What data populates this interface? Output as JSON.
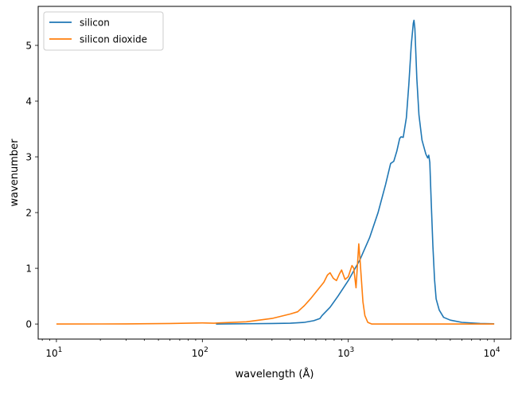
{
  "chart_data": {
    "type": "line",
    "xlabel": "wavelength (Å)",
    "ylabel": "wavenumber",
    "xscale": "log",
    "xlim": [
      7.5,
      13000
    ],
    "ylim": [
      -0.27,
      5.7
    ],
    "xticks": [
      {
        "value": 10,
        "base": "10",
        "exp": "1"
      },
      {
        "value": 100,
        "base": "10",
        "exp": "2"
      },
      {
        "value": 1000,
        "base": "10",
        "exp": "3"
      },
      {
        "value": 10000,
        "base": "10",
        "exp": "4"
      }
    ],
    "yticks": [
      0,
      1,
      2,
      3,
      4,
      5
    ],
    "grid": false,
    "legend_position": "upper-left",
    "series": [
      {
        "name": "silicon",
        "color": "#1f77b4",
        "points": [
          [
            124,
            0.0
          ],
          [
            200,
            0.005
          ],
          [
            300,
            0.01
          ],
          [
            400,
            0.015
          ],
          [
            500,
            0.03
          ],
          [
            580,
            0.06
          ],
          [
            640,
            0.1
          ],
          [
            660,
            0.15
          ],
          [
            750,
            0.3
          ],
          [
            850,
            0.5
          ],
          [
            1000,
            0.78
          ],
          [
            1200,
            1.15
          ],
          [
            1400,
            1.55
          ],
          [
            1600,
            2.0
          ],
          [
            1800,
            2.5
          ],
          [
            1950,
            2.88
          ],
          [
            2050,
            2.92
          ],
          [
            2150,
            3.1
          ],
          [
            2250,
            3.33
          ],
          [
            2300,
            3.36
          ],
          [
            2380,
            3.35
          ],
          [
            2500,
            3.7
          ],
          [
            2600,
            4.3
          ],
          [
            2700,
            5.0
          ],
          [
            2790,
            5.4
          ],
          [
            2820,
            5.45
          ],
          [
            2860,
            5.3
          ],
          [
            2950,
            4.4
          ],
          [
            3050,
            3.75
          ],
          [
            3200,
            3.3
          ],
          [
            3400,
            3.05
          ],
          [
            3500,
            2.98
          ],
          [
            3560,
            3.03
          ],
          [
            3620,
            2.9
          ],
          [
            3700,
            2.2
          ],
          [
            3800,
            1.4
          ],
          [
            3900,
            0.8
          ],
          [
            4000,
            0.45
          ],
          [
            4200,
            0.25
          ],
          [
            4500,
            0.12
          ],
          [
            5000,
            0.07
          ],
          [
            6000,
            0.03
          ],
          [
            8000,
            0.01
          ],
          [
            10000,
            0.005
          ]
        ]
      },
      {
        "name": "silicon dioxide",
        "color": "#ff7f0e",
        "points": [
          [
            10,
            0.0
          ],
          [
            30,
            0.002
          ],
          [
            60,
            0.01
          ],
          [
            100,
            0.02
          ],
          [
            120,
            0.015
          ],
          [
            130,
            0.02
          ],
          [
            200,
            0.04
          ],
          [
            300,
            0.1
          ],
          [
            400,
            0.18
          ],
          [
            450,
            0.22
          ],
          [
            500,
            0.33
          ],
          [
            550,
            0.45
          ],
          [
            620,
            0.62
          ],
          [
            680,
            0.75
          ],
          [
            720,
            0.88
          ],
          [
            750,
            0.92
          ],
          [
            790,
            0.82
          ],
          [
            830,
            0.78
          ],
          [
            870,
            0.9
          ],
          [
            900,
            0.97
          ],
          [
            950,
            0.8
          ],
          [
            1000,
            0.85
          ],
          [
            1060,
            1.05
          ],
          [
            1090,
            1.0
          ],
          [
            1130,
            0.65
          ],
          [
            1180,
            1.44
          ],
          [
            1200,
            1.2
          ],
          [
            1230,
            0.8
          ],
          [
            1260,
            0.4
          ],
          [
            1300,
            0.15
          ],
          [
            1360,
            0.03
          ],
          [
            1450,
            0.0
          ],
          [
            2000,
            0.0
          ],
          [
            5000,
            0.0
          ],
          [
            10000,
            0.0
          ]
        ]
      }
    ]
  }
}
